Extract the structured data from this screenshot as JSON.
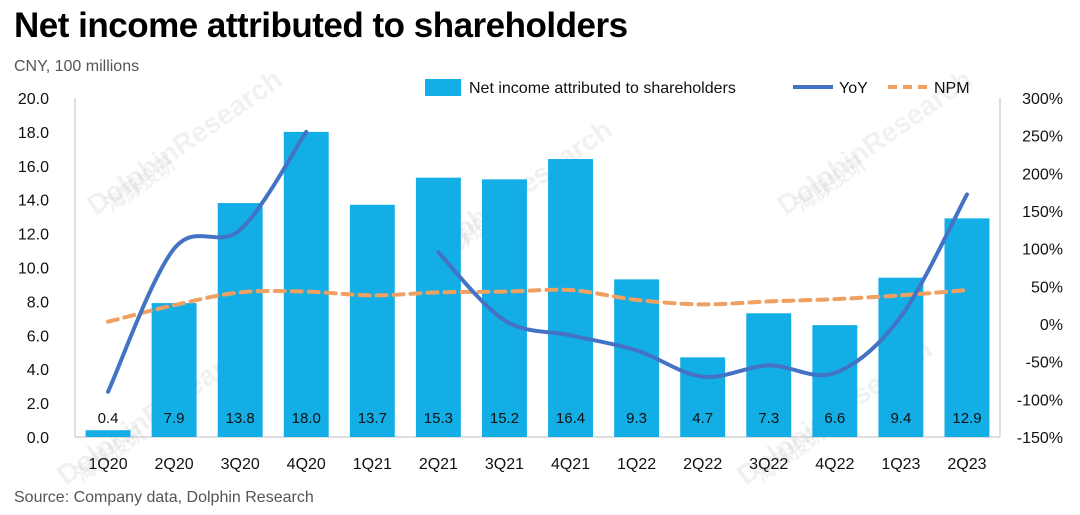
{
  "title": "Net income attributed to shareholders",
  "subtitle": "CNY, 100 millions",
  "source": "Source: Company data,  Dolphin Research",
  "watermark": "DolphinResearch",
  "watermark_cn": "海豚投研",
  "colors": {
    "bar": "#13aee6",
    "yoy": "#4472c4",
    "npm": "#f0a060"
  },
  "chart_data": {
    "type": "bar",
    "categories": [
      "1Q20",
      "2Q20",
      "3Q20",
      "4Q20",
      "1Q21",
      "2Q21",
      "3Q21",
      "4Q21",
      "1Q22",
      "2Q22",
      "3Q22",
      "4Q22",
      "1Q23",
      "2Q23"
    ],
    "series": [
      {
        "name": "Net income attributed to shareholders",
        "axis": "left",
        "type": "bar",
        "values": [
          0.4,
          7.9,
          13.8,
          18.0,
          13.7,
          15.3,
          15.2,
          16.4,
          9.3,
          4.7,
          7.3,
          6.6,
          9.4,
          12.9
        ],
        "labels": [
          "0.4",
          "7.9",
          "13.8",
          "18.0",
          "13.7",
          "15.3",
          "15.2",
          "16.4",
          "9.3",
          "4.7",
          "7.3",
          "6.6",
          "9.4",
          "12.9"
        ]
      },
      {
        "name": "YoY",
        "axis": "right",
        "type": "line",
        "values": [
          -90,
          100,
          125,
          255,
          null,
          95,
          5,
          -15,
          -35,
          -70,
          -55,
          -65,
          10,
          172
        ]
      },
      {
        "name": "NPM",
        "axis": "right",
        "type": "line",
        "style": "dashed",
        "values": [
          3,
          25,
          42,
          43,
          38,
          42,
          43,
          45,
          32,
          26,
          30,
          33,
          38,
          45
        ]
      }
    ],
    "left_axis": {
      "min": 0,
      "max": 20,
      "step": 2,
      "ticks": [
        "0.0",
        "2.0",
        "4.0",
        "6.0",
        "8.0",
        "10.0",
        "12.0",
        "14.0",
        "16.0",
        "18.0",
        "20.0"
      ]
    },
    "right_axis": {
      "min": -150,
      "max": 300,
      "step": 50,
      "ticks": [
        "-150%",
        "-100%",
        "-50%",
        "0%",
        "50%",
        "100%",
        "150%",
        "200%",
        "250%",
        "300%"
      ]
    },
    "legend_position": "top-right",
    "grid": false
  }
}
